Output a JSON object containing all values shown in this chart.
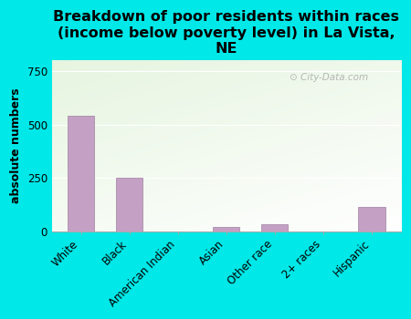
{
  "title": "Breakdown of poor residents within races\n(income below poverty level) in La Vista,\nNE",
  "ylabel": "absolute numbers",
  "categories": [
    "White",
    "Black",
    "American Indian",
    "Asian",
    "Other race",
    "2+ races",
    "Hispanic"
  ],
  "values": [
    540,
    250,
    0,
    20,
    35,
    0,
    115
  ],
  "bar_color": "#c4a0c4",
  "bar_edge_color": "#a080a0",
  "ylim": [
    0,
    800
  ],
  "yticks": [
    0,
    250,
    500,
    750
  ],
  "background_color": "#00e8e8",
  "title_fontsize": 11.5,
  "ylabel_fontsize": 9,
  "tick_fontsize": 8.5,
  "watermark": "City-Data.com"
}
